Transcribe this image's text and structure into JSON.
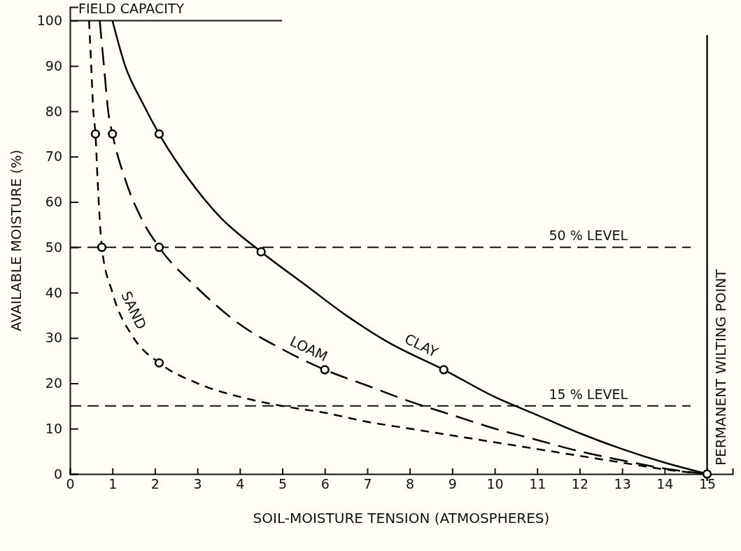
{
  "chart_data": {
    "type": "line",
    "xlabel": "SOIL-MOISTURE TENSION (ATMOSPHERES)",
    "ylabel": "AVAILABLE MOISTURE (%)",
    "xlim": [
      0,
      15.6
    ],
    "xticks": [
      0,
      1,
      2,
      3,
      4,
      5,
      6,
      7,
      8,
      9,
      10,
      11,
      12,
      13,
      14,
      15
    ],
    "ylim": [
      0,
      103
    ],
    "yticks": [
      0,
      10,
      20,
      30,
      40,
      50,
      60,
      70,
      80,
      90,
      100
    ],
    "series": [
      {
        "name": "CLAY",
        "color": "#000000",
        "line_style": "solid",
        "x": [
          1,
          1.3,
          1.7,
          2.1,
          2.8,
          3.5,
          4.5,
          5.5,
          6.5,
          7.5,
          8.8,
          10,
          11,
          12,
          13,
          14,
          15
        ],
        "values": [
          100,
          90,
          82,
          75,
          65,
          57,
          49,
          42,
          35,
          29,
          23,
          17,
          13,
          9,
          5.5,
          2.5,
          0
        ]
      },
      {
        "name": "LOAM",
        "color": "#000000",
        "line_style": "dashed",
        "x": [
          0.7,
          0.8,
          0.9,
          1,
          1.3,
          1.7,
          2.1,
          3,
          4,
          5,
          6,
          7,
          8,
          9,
          10,
          11,
          12,
          13,
          14,
          15
        ],
        "values": [
          100,
          90,
          80,
          75,
          65,
          56,
          50,
          41,
          33,
          27.5,
          23,
          19.5,
          16,
          13,
          10,
          7.5,
          5,
          3,
          1.2,
          0
        ]
      },
      {
        "name": "SAND",
        "color": "#000000",
        "line_style": "dashed",
        "x": [
          0.45,
          0.5,
          0.55,
          0.6,
          0.65,
          0.75,
          1,
          1.5,
          2.1,
          3,
          4,
          5,
          6,
          7,
          8,
          9,
          10,
          11,
          12,
          13,
          14,
          15
        ],
        "values": [
          100,
          90,
          80,
          75,
          65,
          50,
          40,
          30,
          24.5,
          20,
          17,
          15,
          13.5,
          11.5,
          10,
          8.5,
          7,
          5.5,
          4,
          2.5,
          1,
          0
        ]
      },
      {
        "type": "scatter",
        "color": "#000000",
        "marker": "circle",
        "x": [
          0.6,
          1,
          2.1,
          0.75,
          2.1,
          4.5,
          2.1,
          6,
          8.8,
          15
        ],
        "values": [
          75,
          75,
          75,
          50,
          50,
          49,
          24.5,
          23,
          23,
          0
        ]
      }
    ],
    "ref_lines": [
      {
        "axis": "y",
        "value": 100,
        "label": "FIELD CAPACITY",
        "line_style": "solid"
      },
      {
        "axis": "y",
        "value": 50,
        "label": "50 % LEVEL",
        "line_style": "dashed"
      },
      {
        "axis": "y",
        "value": 15,
        "label": "15 % LEVEL",
        "line_style": "dashed"
      },
      {
        "axis": "x",
        "value": 15,
        "label": "PERMANENT WILTING POINT",
        "line_style": "solid"
      }
    ]
  }
}
